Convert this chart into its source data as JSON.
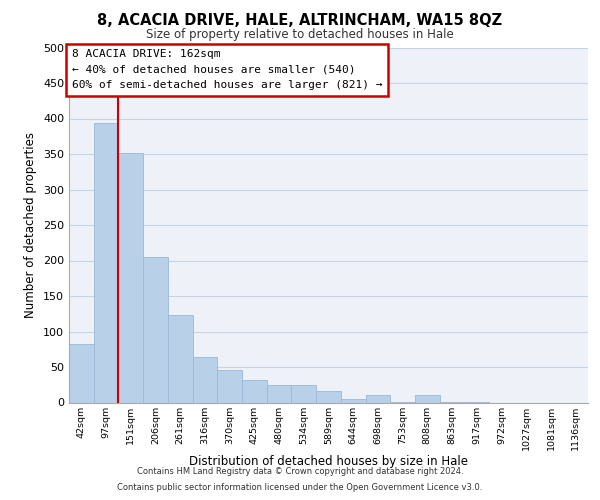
{
  "title": "8, ACACIA DRIVE, HALE, ALTRINCHAM, WA15 8QZ",
  "subtitle": "Size of property relative to detached houses in Hale",
  "xlabel": "Distribution of detached houses by size in Hale",
  "ylabel": "Number of detached properties",
  "bar_values": [
    82,
    393,
    351,
    205,
    123,
    64,
    46,
    31,
    25,
    25,
    16,
    5,
    10,
    1,
    10,
    1,
    1,
    0,
    0,
    0,
    0
  ],
  "bin_labels": [
    "42sqm",
    "97sqm",
    "151sqm",
    "206sqm",
    "261sqm",
    "316sqm",
    "370sqm",
    "425sqm",
    "480sqm",
    "534sqm",
    "589sqm",
    "644sqm",
    "698sqm",
    "753sqm",
    "808sqm",
    "863sqm",
    "917sqm",
    "972sqm",
    "1027sqm",
    "1081sqm",
    "1136sqm"
  ],
  "bar_color": "#b8d0e8",
  "bar_edge_color": "#9ab8d8",
  "vline_color": "#cc0000",
  "vline_x_index": 2,
  "annotation_text_line1": "8 ACACIA DRIVE: 162sqm",
  "annotation_text_line2": "← 40% of detached houses are smaller (540)",
  "annotation_text_line3": "60% of semi-detached houses are larger (821) →",
  "ylim": [
    0,
    500
  ],
  "yticks": [
    0,
    50,
    100,
    150,
    200,
    250,
    300,
    350,
    400,
    450,
    500
  ],
  "grid_color": "#c8d4e4",
  "background_color": "#eef2f8",
  "footer_line1": "Contains HM Land Registry data © Crown copyright and database right 2024.",
  "footer_line2": "Contains public sector information licensed under the Open Government Licence v3.0."
}
